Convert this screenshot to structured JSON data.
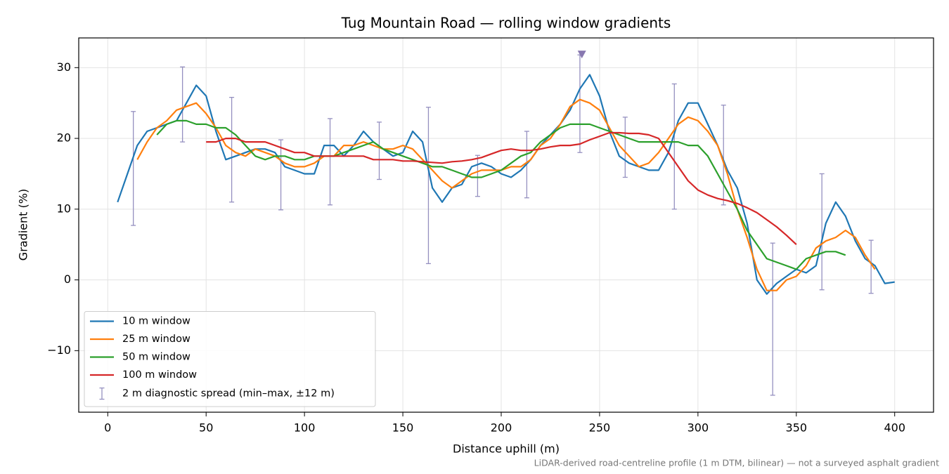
{
  "chart_data": {
    "type": "line",
    "title": "Tug Mountain Road — rolling window gradients",
    "xlabel": "Distance uphill (m)",
    "ylabel": "Gradient (%)",
    "footnote": "LiDAR-derived road-centreline profile (1 m DTM, bilinear) — not a surveyed asphalt gradient",
    "xlim": [
      -14.75,
      419.75
    ],
    "ylim": [
      -18.7,
      34.2
    ],
    "xticks": [
      0,
      50,
      100,
      150,
      200,
      250,
      300,
      350,
      400
    ],
    "yticks": [
      {
        "value": -10,
        "label": "−10"
      },
      0,
      10,
      20,
      30
    ],
    "grid": true,
    "legend": "lower left",
    "x": [
      5,
      10,
      15,
      20,
      25,
      30,
      35,
      40,
      45,
      50,
      55,
      60,
      65,
      70,
      75,
      80,
      85,
      90,
      95,
      100,
      105,
      110,
      115,
      120,
      125,
      130,
      135,
      140,
      145,
      150,
      155,
      160,
      165,
      170,
      175,
      180,
      185,
      190,
      195,
      200,
      205,
      210,
      215,
      220,
      225,
      230,
      235,
      240,
      245,
      250,
      255,
      260,
      265,
      270,
      275,
      280,
      285,
      290,
      295,
      300,
      305,
      310,
      315,
      320,
      325,
      330,
      335,
      340,
      345,
      350,
      355,
      360,
      365,
      370,
      375,
      380,
      385,
      390,
      395,
      400
    ],
    "series": [
      {
        "name": "10 m window",
        "color": "#1f77b4",
        "values": [
          11,
          15,
          19,
          21,
          21.5,
          22,
          22.5,
          25,
          27.5,
          26,
          21,
          17,
          17.5,
          18,
          18.5,
          18.5,
          18,
          16,
          15.5,
          15,
          15,
          19,
          19,
          17.5,
          19,
          21,
          19.5,
          18.5,
          17.5,
          18,
          21,
          19.5,
          13,
          11,
          13,
          13.5,
          16,
          16.5,
          16,
          15,
          14.5,
          15.5,
          17,
          19,
          20.5,
          22,
          24,
          27,
          29,
          26,
          21,
          17.5,
          16.5,
          16,
          15.5,
          15.5,
          18,
          22.5,
          25,
          25,
          22,
          19,
          15.5,
          13,
          8,
          0,
          -2,
          -0.5,
          0.5,
          1.5,
          1,
          2,
          8,
          11,
          9,
          5.5,
          3,
          2,
          -0.5,
          -0.3
        ]
      },
      {
        "name": "25 m window",
        "color": "#ff7f0e",
        "values": [
          null,
          null,
          17,
          19.5,
          21.5,
          22.5,
          24,
          24.5,
          25,
          23.5,
          21.5,
          19,
          18,
          17.5,
          18.5,
          18,
          17.5,
          16.5,
          16,
          16,
          16.5,
          17.5,
          17.5,
          19,
          19,
          19.5,
          19,
          18.5,
          18.5,
          19,
          18.5,
          17,
          15.5,
          14,
          13,
          14,
          15,
          15.5,
          15.5,
          15.5,
          16,
          16,
          17,
          19,
          20,
          22,
          24.5,
          25.5,
          25,
          24,
          21.5,
          19,
          17.5,
          16,
          16.5,
          18,
          20,
          22,
          23,
          22.5,
          21,
          19,
          15,
          10,
          6,
          1.5,
          -1.5,
          -1.5,
          0,
          0.5,
          2,
          4.5,
          5.5,
          6,
          7,
          6,
          3.5,
          1.5,
          null,
          null
        ]
      },
      {
        "name": "50 m window",
        "color": "#2ca02c",
        "values": [
          null,
          null,
          null,
          null,
          20.5,
          22,
          22.5,
          22.5,
          22,
          22,
          21.5,
          21.5,
          20.5,
          19,
          17.5,
          17,
          17.5,
          17.5,
          17,
          17,
          17.5,
          17.5,
          17.5,
          18,
          18.5,
          19,
          19.5,
          18.5,
          18,
          17.5,
          17,
          16.5,
          16,
          16,
          15.5,
          15,
          14.5,
          14.5,
          15,
          15.5,
          16.5,
          17.5,
          18,
          19.5,
          20.5,
          21.5,
          22,
          22,
          22,
          21.5,
          21,
          20.5,
          20,
          19.5,
          19.5,
          19.5,
          19.5,
          19.5,
          19,
          19,
          17.5,
          15,
          12.5,
          10,
          7,
          5,
          3,
          2.5,
          2,
          1.5,
          3,
          3.5,
          4,
          4,
          3.5,
          null,
          null,
          null,
          null,
          null
        ]
      },
      {
        "name": "100 m window",
        "color": "#d62728",
        "values": [
          null,
          null,
          null,
          null,
          null,
          null,
          null,
          null,
          null,
          19.5,
          19.5,
          20,
          20,
          19.5,
          19.5,
          19.5,
          19,
          18.5,
          18,
          18,
          17.5,
          17.5,
          17.5,
          17.5,
          17.5,
          17.5,
          17,
          17,
          17,
          16.8,
          16.8,
          16.7,
          16.6,
          16.5,
          16.7,
          16.8,
          17,
          17.3,
          17.8,
          18.3,
          18.5,
          18.3,
          18.3,
          18.5,
          18.8,
          19,
          19,
          19.2,
          19.8,
          20.3,
          20.8,
          20.8,
          20.7,
          20.7,
          20.5,
          20,
          18,
          16,
          14,
          12.7,
          12,
          11.5,
          11.2,
          10.8,
          10.2,
          9.5,
          8.5,
          7.5,
          6.3,
          5,
          null,
          null,
          null,
          null,
          null,
          null,
          null,
          null,
          null,
          null
        ]
      }
    ],
    "errorbars": {
      "name": "2 m diagnostic spread (min–max, ±12 m)",
      "color": "#9590c0",
      "x": [
        13,
        38,
        63,
        88,
        113,
        138,
        163,
        188,
        213,
        240,
        263,
        288,
        313,
        338,
        363,
        388
      ],
      "low": [
        7.7,
        19.5,
        11,
        9.9,
        10.6,
        14.2,
        2.3,
        11.8,
        11.6,
        18,
        14.5,
        10,
        10.6,
        -16.3,
        -1.4,
        -1.9
      ],
      "high": [
        23.8,
        30.1,
        25.8,
        19.8,
        22.8,
        22.3,
        24.4,
        17.6,
        21,
        31.8,
        23,
        27.7,
        24.7,
        5.2,
        15,
        5.6
      ]
    },
    "marker": {
      "x": 241,
      "y": 31.8,
      "color": "#8878b0"
    }
  }
}
